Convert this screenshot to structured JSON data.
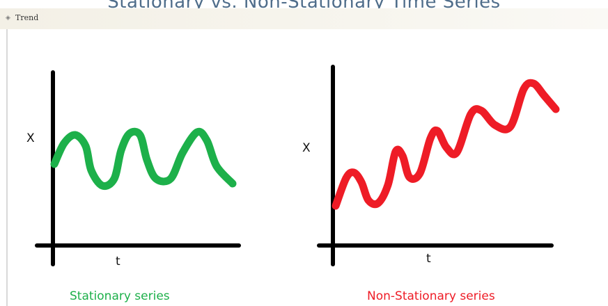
{
  "page_title": "Stationary vs. Non-Stationary Time Series",
  "toolbar": {
    "icon": "diamond-bullet-icon",
    "label": "Trend"
  },
  "diagram": {
    "left": {
      "y_label": "X",
      "x_label": "t",
      "caption": "Stationary series",
      "color": "#1db04a"
    },
    "right": {
      "y_label": "X",
      "x_label": "t",
      "caption": "Non-Stationary series",
      "color": "#ee1c26"
    }
  }
}
